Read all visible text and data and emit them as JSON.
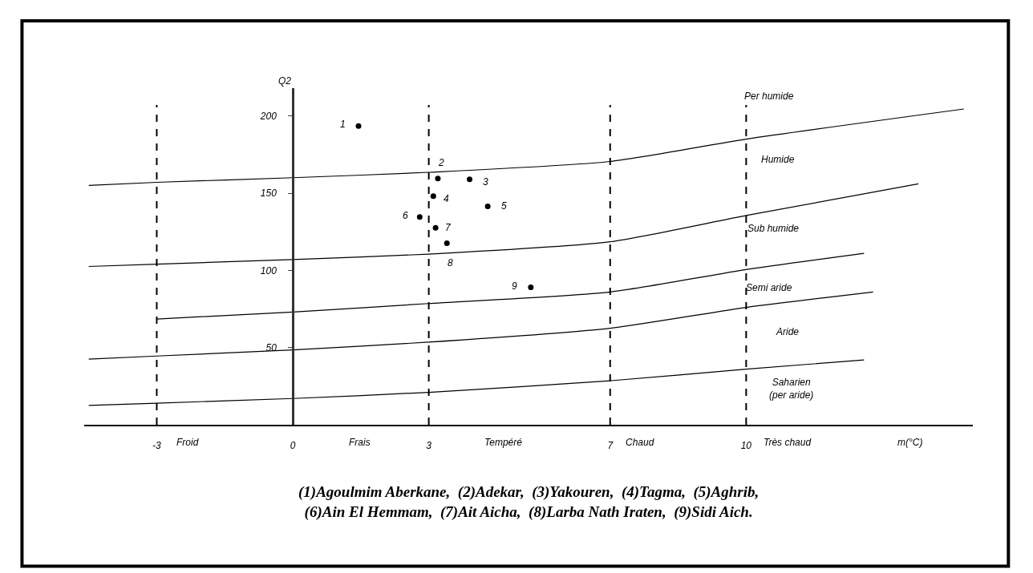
{
  "chart_data": {
    "type": "scatter",
    "xlabel": "m(°C)",
    "ylabel": "Q2",
    "xlim": [
      -4.6,
      15
    ],
    "ylim": [
      0,
      218
    ],
    "xticks": [
      -3,
      0,
      3,
      7,
      10
    ],
    "yticks": [
      50,
      100,
      150,
      200
    ],
    "marker": "circle",
    "series": [
      {
        "color": "#000000",
        "x": [
          1.45,
          3.2,
          3.9,
          3.1,
          4.3,
          2.8,
          3.15,
          3.4,
          5.25
        ],
        "values": [
          193.5,
          159.5,
          159,
          148,
          141.5,
          134.5,
          127.5,
          117.5,
          89
        ]
      },
      {
        "type": "line",
        "color": "#000000",
        "marker": "none",
        "x": [
          -4.5,
          -3,
          0,
          3,
          7,
          10,
          14.8
        ],
        "values": [
          155,
          157,
          160,
          163.5,
          170.5,
          185,
          204.5
        ]
      },
      {
        "type": "line",
        "color": "#000000",
        "marker": "none",
        "x": [
          -4.5,
          -3,
          0,
          3,
          7,
          10,
          13.8
        ],
        "values": [
          102.5,
          104,
          107,
          110.5,
          118.5,
          135.5,
          156
        ]
      },
      {
        "type": "line",
        "color": "#000000",
        "marker": "none",
        "x": [
          -3,
          0,
          3,
          7,
          10,
          12.6
        ],
        "values": [
          68.5,
          73,
          78.5,
          86,
          100.5,
          111
        ]
      },
      {
        "type": "line",
        "color": "#000000",
        "marker": "none",
        "x": [
          -4.5,
          -3,
          0,
          3,
          7,
          10,
          12.8
        ],
        "values": [
          42.5,
          44.5,
          48.5,
          53.5,
          62.5,
          76,
          86
        ]
      },
      {
        "type": "line",
        "color": "#000000",
        "marker": "none",
        "x": [
          -4.5,
          -3,
          0,
          3,
          7,
          10,
          12.6
        ],
        "values": [
          12.5,
          14,
          17,
          21,
          28.5,
          36,
          42
        ]
      }
    ],
    "ref_lines": [
      {
        "axis": "x",
        "value": -3,
        "line_style": "dashed",
        "color": "#000000"
      },
      {
        "axis": "x",
        "value": 3,
        "line_style": "dashed",
        "color": "#000000"
      },
      {
        "axis": "x",
        "value": 7,
        "line_style": "dashed",
        "color": "#000000"
      },
      {
        "axis": "x",
        "value": 10,
        "line_style": "dashed",
        "color": "#000000"
      }
    ],
    "annotations": [
      {
        "text": "1",
        "x": 1.45,
        "y": 193.5
      },
      {
        "text": "2",
        "x": 3.2,
        "y": 159.5
      },
      {
        "text": "3",
        "x": 3.9,
        "y": 159
      },
      {
        "text": "4",
        "x": 3.1,
        "y": 148
      },
      {
        "text": "5",
        "x": 4.3,
        "y": 141.5
      },
      {
        "text": "6",
        "x": 2.8,
        "y": 134.5
      },
      {
        "text": "7",
        "x": 3.15,
        "y": 127.5
      },
      {
        "text": "8",
        "x": 3.4,
        "y": 117.5
      },
      {
        "text": "9",
        "x": 5.25,
        "y": 89
      },
      "Per humide",
      "Humide",
      "Sub humide",
      "Semi aride",
      "Aride",
      "Saharien\n(per aride)",
      "Froid",
      "Frais",
      "Tempéré",
      "Chaud",
      "Très chaud",
      "(1)Agoulmim Aberkane,  (2)Adekar,  (3)Yakouren,  (4)Tagma,  (5)Aghrib,\n(6)Ain El Hemmam,  (7)Ait Aicha,  (8)Larba Nath Iraten,  (9)Sidi Aich."
    ]
  }
}
